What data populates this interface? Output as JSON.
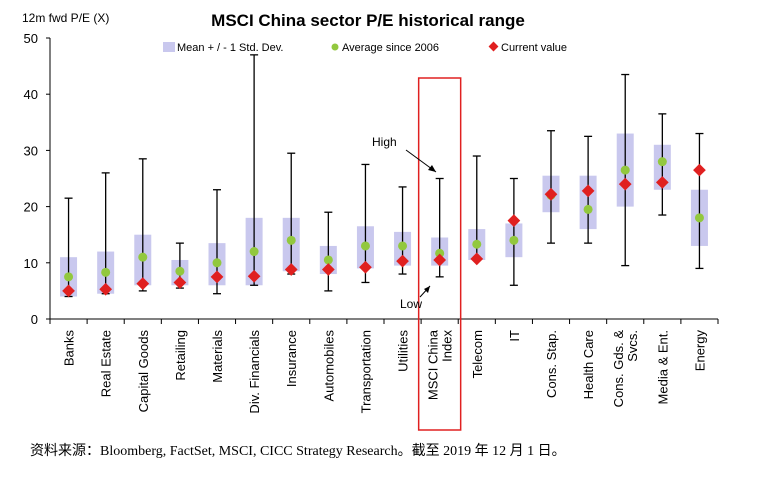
{
  "chart_data": {
    "type": "range",
    "title": "MSCI China sector P/E historical range",
    "ylabel": "12m fwd P/E (X)",
    "ylim": [
      0,
      50
    ],
    "yticks": [
      0,
      10,
      20,
      30,
      40,
      50
    ],
    "legend": {
      "band": "Mean + / - 1 Std. Dev.",
      "average": "Average since 2006",
      "current": "Current value"
    },
    "categories": [
      "Banks",
      "Real Estate",
      "Capital Goods",
      "Retailing",
      "Materials",
      "Div. Financials",
      "Insurance",
      "Automobiles",
      "Transportation",
      "Utilities",
      "MSCI China Index",
      "Telecom",
      "IT",
      "Cons. Stap.",
      "Health Care",
      "Cons. Gds. & Svcs.",
      "Media & Ent.",
      "Energy"
    ],
    "category_lines": [
      [
        "Banks"
      ],
      [
        "Real Estate"
      ],
      [
        "Capital Goods"
      ],
      [
        "Retailing"
      ],
      [
        "Materials"
      ],
      [
        "Div. Financials"
      ],
      [
        "Insurance"
      ],
      [
        "Automobiles"
      ],
      [
        "Transportation"
      ],
      [
        "Utilities"
      ],
      [
        "MSCI China",
        "Index"
      ],
      [
        "Telecom"
      ],
      [
        "IT"
      ],
      [
        "Cons. Stap."
      ],
      [
        "Health Care"
      ],
      [
        "Cons. Gds. &",
        "Svcs."
      ],
      [
        "Media & Ent."
      ],
      [
        "Energy"
      ]
    ],
    "series": {
      "high": [
        21.5,
        26.0,
        28.5,
        13.5,
        23.0,
        47.0,
        29.5,
        19.0,
        27.5,
        23.5,
        25.0,
        29.0,
        25.0,
        33.5,
        32.5,
        43.5,
        36.5,
        33.0
      ],
      "low": [
        4.0,
        4.5,
        5.0,
        5.5,
        4.5,
        6.0,
        8.0,
        5.0,
        6.5,
        8.0,
        7.5,
        10.5,
        6.0,
        13.5,
        13.5,
        9.5,
        18.5,
        9.0
      ],
      "band_upper": [
        11.0,
        12.0,
        15.0,
        10.5,
        13.5,
        18.0,
        18.0,
        13.0,
        16.5,
        15.5,
        14.5,
        16.0,
        17.0,
        25.5,
        25.5,
        33.0,
        31.0,
        23.0
      ],
      "band_lower": [
        4.0,
        4.5,
        6.0,
        6.0,
        6.0,
        6.0,
        8.5,
        8.0,
        9.0,
        9.5,
        9.5,
        10.5,
        11.0,
        19.0,
        16.0,
        20.0,
        23.0,
        13.0
      ],
      "average": [
        7.5,
        8.3,
        11.0,
        8.5,
        10.0,
        12.0,
        14.0,
        10.5,
        13.0,
        13.0,
        11.7,
        13.3,
        14.0,
        22.0,
        19.5,
        26.5,
        28.0,
        18.0
      ],
      "current": [
        5.0,
        5.3,
        6.3,
        6.5,
        7.5,
        7.6,
        8.8,
        8.8,
        9.2,
        10.3,
        10.5,
        10.7,
        17.5,
        22.2,
        22.8,
        24.0,
        24.3,
        26.5
      ]
    },
    "highlight_category": "MSCI China Index",
    "annotations": {
      "high": "High",
      "low": "Low"
    },
    "colors": {
      "band": "#c9c8ee",
      "average": "#92c83e",
      "current": "#e02020",
      "whisker": "#000000",
      "highlight_box": "#e02020"
    }
  },
  "source_note": "资料来源：Bloomberg, FactSet, MSCI, CICC Strategy Research。截至 2019 年 12 月 1 日。"
}
